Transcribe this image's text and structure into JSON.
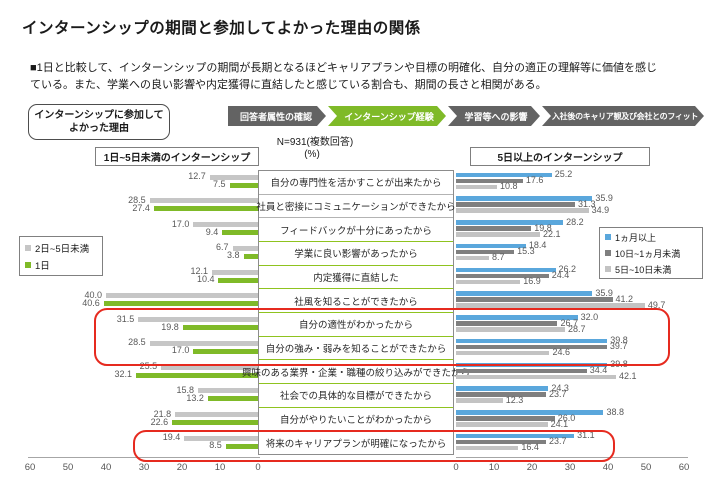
{
  "title": "インターンシップの期間と参加してよかった理由の関係",
  "summary": "■1日と比較して、インターンシップの期間が長期となるほどキャリアプランや目標の明確化、自分の適正の理解等に価値を感じている。また、学業への良い影響や内定獲得に直結したと感じている割合も、期間の長さと相関がある。",
  "side_label": "インターンシップに参加してよかった理由",
  "breadcrumb": {
    "items": [
      {
        "label": "回答者属性の確認",
        "active": false
      },
      {
        "label": "インターンシップ経験",
        "active": true
      },
      {
        "label": "学習等への影響",
        "active": false
      },
      {
        "label": "入社後のキャリア観及び会社とのフィット",
        "active": false
      }
    ]
  },
  "sample_note": "N=931(複数回答)",
  "unit_label": "(%)",
  "colors": {
    "accent_green": "#7fba28",
    "crumb_gray": "#636363",
    "highlight_red": "#e62a1f",
    "light_gray_bar": "#c6c6c6",
    "dark_gray_bar": "#7f7f7f",
    "blue_bar": "#5aa7dc"
  },
  "chart_data": {
    "type": "bar",
    "orientation": "horizontal-butterfly",
    "unit": "%",
    "xlim": [
      0,
      60
    ],
    "grid": false,
    "categories": [
      "自分の専門性を活かすことが出来たから",
      "社員と密接にコミュニケーションができたから",
      "フィードバックが十分にあったから",
      "学業に良い影響があったから",
      "内定獲得に直結した",
      "社風を知ることができたから",
      "自分の適性がわかったから",
      "自分の強み・弱みを知ることができたから",
      "興味のある業界・企業・職種の絞り込みができたから",
      "社会での具体的な目標ができたから",
      "自分がやりたいことがわかったから",
      "将来のキャリアプランが明確になったから"
    ],
    "left_chart": {
      "title": "1日~5日未満のインターンシップ",
      "axis_ticks": [
        60,
        50,
        40,
        30,
        20,
        10,
        0
      ],
      "legend_position": "left-middle",
      "series": [
        {
          "name": "2日~5日未満",
          "color": "#c6c6c6",
          "values": [
            12.7,
            28.5,
            17.0,
            6.7,
            12.1,
            40.0,
            31.5,
            28.5,
            25.5,
            15.8,
            21.8,
            19.4
          ]
        },
        {
          "name": "1日",
          "color": "#7fba28",
          "values": [
            7.5,
            27.4,
            9.4,
            3.8,
            10.4,
            40.6,
            19.8,
            17.0,
            32.1,
            13.2,
            22.6,
            8.5
          ]
        }
      ]
    },
    "right_chart": {
      "title": "5日以上のインターンシップ",
      "axis_ticks": [
        0,
        10,
        20,
        30,
        40,
        50,
        60
      ],
      "legend_position": "right-middle",
      "series": [
        {
          "name": "1ヵ月以上",
          "color": "#5aa7dc",
          "values": [
            25.2,
            35.9,
            28.2,
            18.4,
            26.2,
            35.9,
            32.0,
            39.8,
            39.8,
            24.3,
            38.8,
            31.1
          ]
        },
        {
          "name": "10日~1ヵ月未満",
          "color": "#7f7f7f",
          "values": [
            17.6,
            31.3,
            19.8,
            15.3,
            24.4,
            41.2,
            26.7,
            39.7,
            34.4,
            23.7,
            26.0,
            23.7
          ]
        },
        {
          "name": "5日~10日未満",
          "color": "#c3c3c3",
          "values": [
            10.8,
            34.9,
            22.1,
            8.7,
            16.9,
            49.7,
            28.7,
            24.6,
            42.1,
            12.3,
            24.1,
            16.4
          ]
        }
      ]
    },
    "highlighted_categories": [
      "自分の適性がわかったから",
      "自分の強み・弱みを知ることができたから",
      "将来のキャリアプランが明確になったから"
    ]
  }
}
